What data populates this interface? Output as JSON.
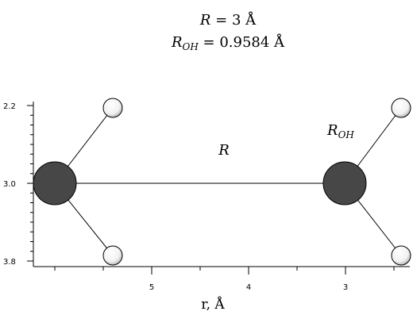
{
  "header": {
    "line1_symbol": "R",
    "line1_value": " = 3 Å",
    "line2_symbol": "R",
    "line2_sub": "OH",
    "line2_value": " = 0.9584 Å"
  },
  "labels": {
    "r_symbol": "R",
    "roh_symbol": "R",
    "roh_sub": "OH"
  },
  "axes": {
    "xlabel": "r, Å",
    "x_ticks": [
      "5",
      "4",
      "3"
    ],
    "y_ticks": [
      "2.2",
      "3.0",
      "3.8"
    ]
  },
  "colors": {
    "oxygen_fill": "#474747",
    "hydrogen_fill": "#ffffff",
    "bond": "#000000"
  }
}
